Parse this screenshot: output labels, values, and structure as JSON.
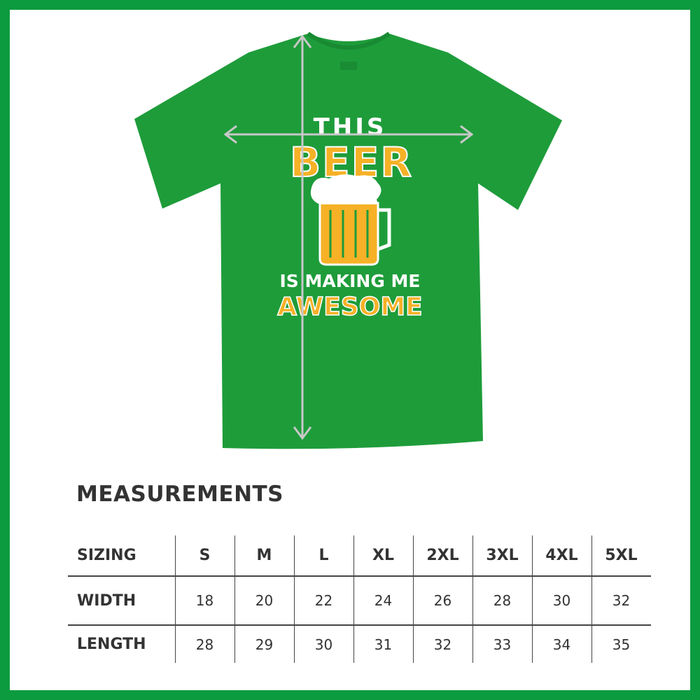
{
  "colors": {
    "border": "#0c9b3f",
    "shirt": "#1e9c3a",
    "print_orange": "#f6b126",
    "print_white": "#ffffff",
    "text": "#333333"
  },
  "shirt_print": {
    "line1": "THIS",
    "line2": "BEER",
    "line3": "IS MAKING ME",
    "line4": "AWESOME",
    "graphic": "beer-mug"
  },
  "measurements": {
    "title": "MEASUREMENTS",
    "header": [
      "SIZING",
      "S",
      "M",
      "L",
      "XL",
      "2XL",
      "3XL",
      "4XL",
      "5XL"
    ],
    "rows": [
      {
        "label": "WIDTH",
        "values": [
          "18",
          "20",
          "22",
          "24",
          "26",
          "28",
          "30",
          "32"
        ]
      },
      {
        "label": "LENGTH",
        "values": [
          "28",
          "29",
          "30",
          "31",
          "32",
          "33",
          "34",
          "35"
        ]
      }
    ]
  }
}
